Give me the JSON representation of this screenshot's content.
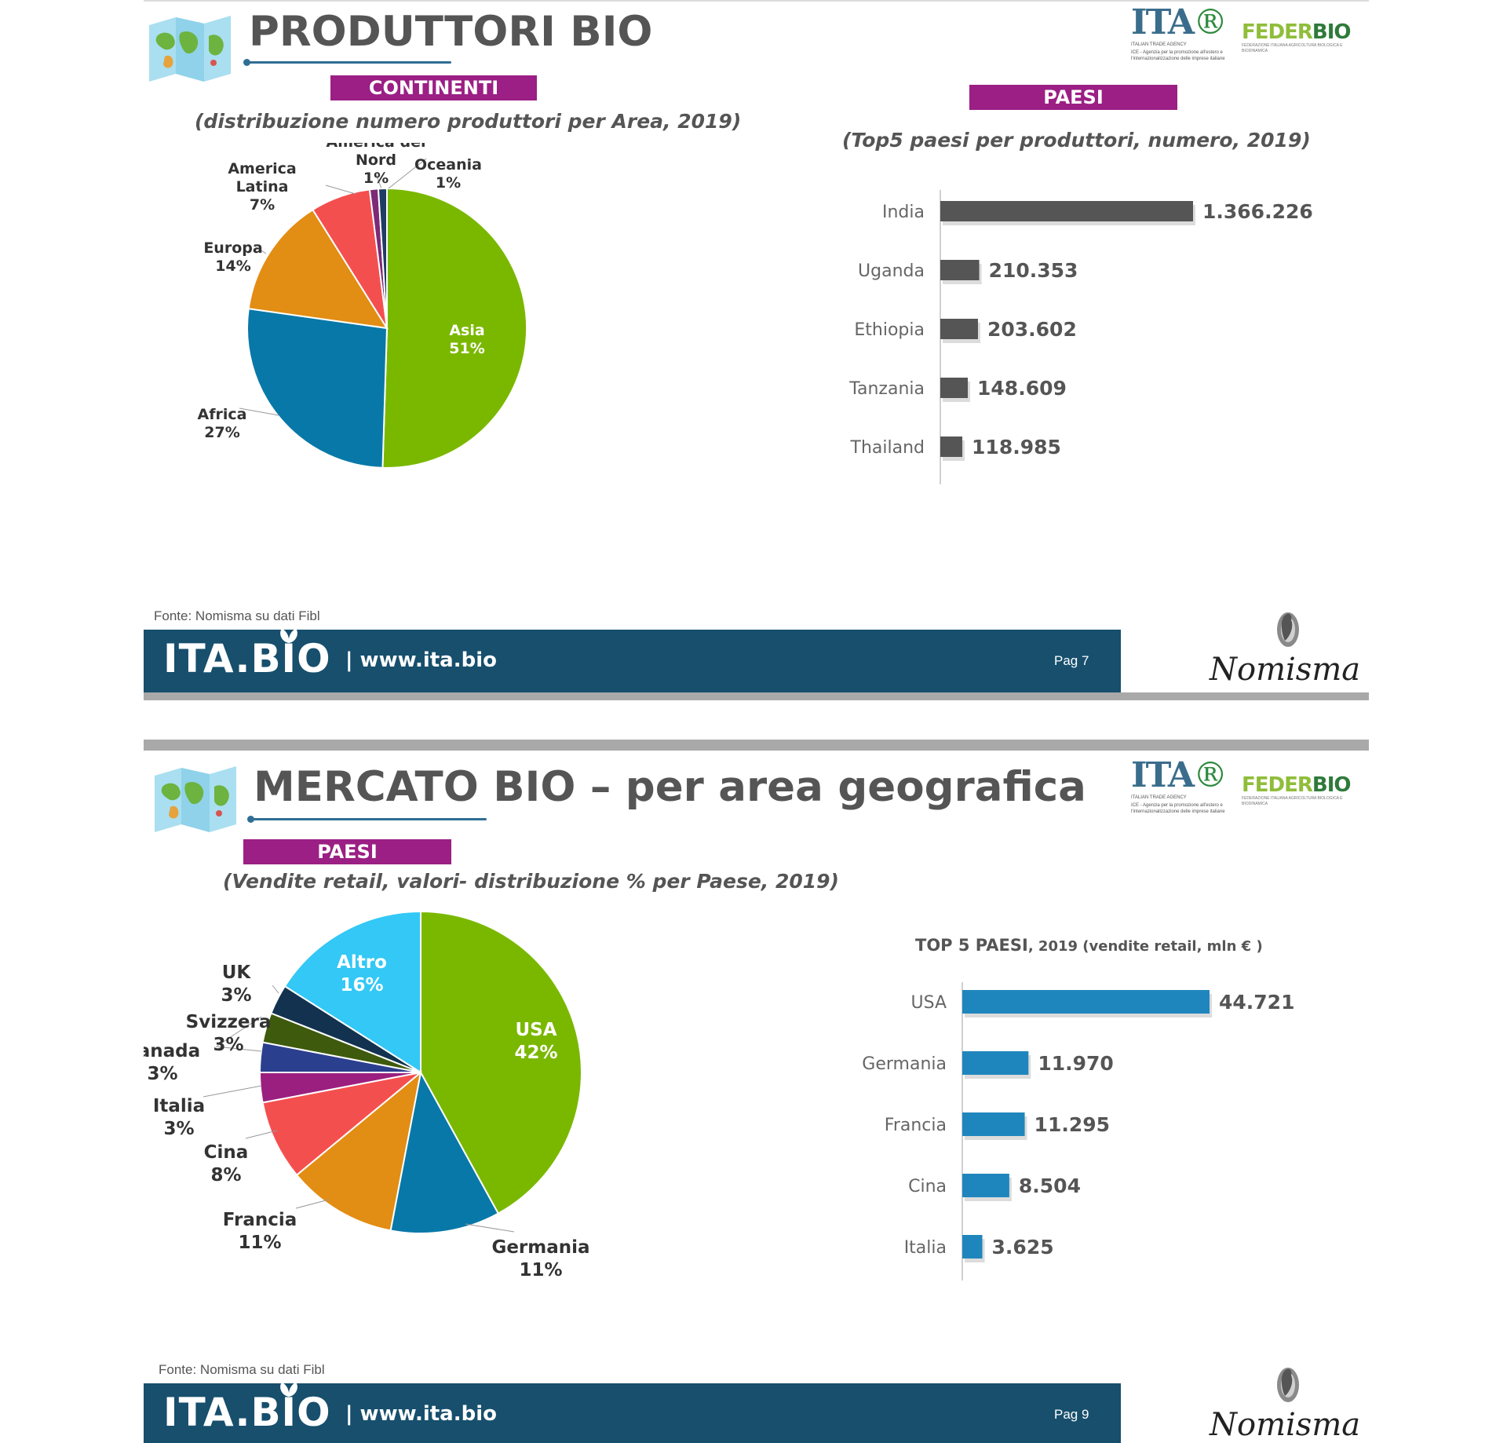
{
  "slide1": {
    "title": "PRODUTTORI BIO",
    "tag_left": "CONTINENTI",
    "subtitle_left": "(distribuzione numero produttori per Area, 2019)",
    "tag_right": "PAESI",
    "subtitle_right": "(Top5 paesi per produttori, numero, 2019)",
    "source": "Fonte: Nomisma su dati Fibl",
    "footer_logo": "ITA.BIO",
    "footer_url": "| www.ita.bio",
    "footer_page": "Pag 7"
  },
  "slide2": {
    "title": "MERCATO BIO – per area geografica",
    "tag_left": "PAESI",
    "subtitle_left": "(Vendite retail, valori- distribuzione % per Paese, 2019)",
    "bar_title_bold": "TOP 5 PAESI",
    "bar_title_rest": ", 2019 (vendite retail, mln € )",
    "source": "Fonte: Nomisma su dati Fibl",
    "footer_logo": "ITA.BIO",
    "footer_url": "| www.ita.bio",
    "footer_page": "Pag 9"
  },
  "logos": {
    "ita_mark": "ITA",
    "ita_sub": "ITALIAN TRADE AGENCY",
    "ita_desc": "ICE - Agenzia per la promozione all'estero e l'internazionalizzazione delle imprese italiane",
    "feder_a": "FEDER",
    "feder_b": "BIO",
    "feder_sub": "FEDERAZIONE ITALIANA AGRICOLTURA BIOLOGICA E BIODINAMICA",
    "nomisma": "Nomisma"
  },
  "icons": {
    "world_map": "world-map-icon",
    "leaf": "leaf-icon",
    "nomisma_emblem": "nomisma-emblem-icon"
  },
  "chart_data": [
    {
      "type": "pie",
      "title": "",
      "slices": [
        {
          "name": "Asia",
          "value": 51,
          "label": "51%",
          "color": "#7ab800"
        },
        {
          "name": "Africa",
          "value": 27,
          "label": "27%",
          "color": "#0878a8"
        },
        {
          "name": "Europa",
          "value": 14,
          "label": "14%",
          "color": "#e28d13"
        },
        {
          "name": "America Latina",
          "value": 7,
          "label": "7%",
          "color": "#f44f4f"
        },
        {
          "name": "America del Nord",
          "value": 1,
          "label": "1%",
          "color": "#7d2a77"
        },
        {
          "name": "Oceania",
          "value": 1,
          "label": "1%",
          "color": "#1e3c64"
        }
      ]
    },
    {
      "type": "bar",
      "orientation": "horizontal",
      "title": "",
      "categories": [
        "India",
        "Uganda",
        "Ethiopia",
        "Tanzania",
        "Thailand"
      ],
      "values": [
        1366226,
        210353,
        203602,
        148609,
        118985
      ],
      "value_labels": [
        "1.366.226",
        "210.353",
        "203.602",
        "148.609",
        "118.985"
      ],
      "color": "#555555"
    },
    {
      "type": "pie",
      "title": "",
      "slices": [
        {
          "name": "USA",
          "value": 42,
          "label": "42%",
          "color": "#7ab800"
        },
        {
          "name": "Germania",
          "value": 11,
          "label": "11%",
          "color": "#0878a8"
        },
        {
          "name": "Francia",
          "value": 11,
          "label": "11%",
          "color": "#e28d13"
        },
        {
          "name": "Cina",
          "value": 8,
          "label": "8%",
          "color": "#f44f4f"
        },
        {
          "name": "Italia",
          "value": 3,
          "label": "3%",
          "color": "#9b1f7e"
        },
        {
          "name": "Canada",
          "value": 3,
          "label": "3%",
          "color": "#2b3f8f"
        },
        {
          "name": "Svizzera",
          "value": 3,
          "label": "3%",
          "color": "#3e5a0c"
        },
        {
          "name": "UK",
          "value": 3,
          "label": "3%",
          "color": "#12324f"
        },
        {
          "name": "Altro",
          "value": 16,
          "label": "16%",
          "color": "#33c8f5"
        }
      ]
    },
    {
      "type": "bar",
      "orientation": "horizontal",
      "title": "TOP 5 PAESI, 2019 (vendite retail, mln € )",
      "categories": [
        "USA",
        "Germania",
        "Francia",
        "Cina",
        "Italia"
      ],
      "values": [
        44721,
        11970,
        11295,
        8504,
        3625
      ],
      "value_labels": [
        "44.721",
        "11.970",
        "11.295",
        "8.504",
        "3.625"
      ],
      "color": "#1f86bd"
    }
  ]
}
